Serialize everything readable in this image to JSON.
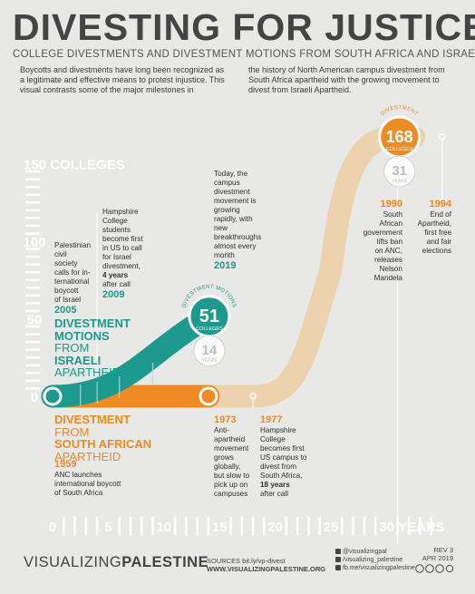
{
  "title": "DIVESTING FOR JUSTICE",
  "subtitle": "COLLEGE DIVESTMENTS AND DIVESTMENT MOTIONS FROM SOUTH AFRICA AND ISRAEL",
  "intro": {
    "left": "Boycotts and divestments have long been recognized as a legitimate and effective means to protest injustice. This visual contrasts some of the major milestones in",
    "right": "the history of North American campus divestment from South Africa apartheid with the growing movement to divest from Israeli Apartheid."
  },
  "colors": {
    "teal": "#1d9a8d",
    "orange": "#ee8b23",
    "beige": "#ecd2ad",
    "bg": "#e8e8e6",
    "text": "#2e2e2e"
  },
  "chart_data": {
    "type": "line",
    "ylabel": "150 COLLEGES",
    "xlabel": "30 YEARS",
    "y_ticks": [
      "0",
      "50",
      "100"
    ],
    "x_ticks": [
      "0",
      "5",
      "10",
      "15",
      "20",
      "25"
    ],
    "ylim": [
      0,
      150
    ],
    "xlim": [
      0,
      35
    ],
    "series": [
      {
        "name": "DIVESTMENT MOTIONS FROM ISRAELI APARTHEID",
        "name_lines": [
          "DIVESTMENT",
          "MOTIONS",
          "FROM",
          "ISRAELI",
          "APARTHEID"
        ],
        "color": "#1d9a8d",
        "x": [
          0,
          14
        ],
        "y": [
          0,
          51
        ],
        "end_value": "51",
        "end_unit": "COLLEGES",
        "end_arc_label": "DIVESTMENT MOTIONS",
        "duration_value": "14",
        "duration_unit": "YEARS"
      },
      {
        "name": "DIVESTMENT FROM SOUTH AFRICAN APARTHEID",
        "name_lines": [
          "DIVESTMENT",
          "FROM",
          "SOUTH AFRICAN",
          "APARTHEID"
        ],
        "color": "#ee8b23",
        "x": [
          0,
          14,
          18,
          25,
          31
        ],
        "y": [
          0,
          0,
          0,
          82,
          168
        ],
        "end_value": "168",
        "end_unit": "COLLEGES",
        "end_arc_label": "DIVESTMENT",
        "duration_value": "31",
        "duration_unit": "YEARS"
      }
    ],
    "annotations": [
      {
        "year": "2005",
        "lines": [
          "Palestinian",
          "civil",
          "society",
          "calls for in-",
          "ternational",
          "boycott",
          "of Israel"
        ]
      },
      {
        "year": "2009",
        "lines": [
          "Hampshire",
          "College",
          "students",
          "become first",
          "in US to call",
          "for Israel",
          "divestment,"
        ],
        "bold": "4 years",
        "after": "after call"
      },
      {
        "year": "2019",
        "lines": [
          "Today, the",
          "campus",
          "divestment",
          "movement is",
          "growing",
          "rapidly, with",
          "new",
          "breakthroughs",
          "almost every",
          "month"
        ]
      },
      {
        "year": "1959",
        "lines": [
          "ANC launches",
          "international boycott",
          "of South Africa"
        ]
      },
      {
        "year": "1973",
        "lines": [
          "Anti-",
          "apartheid",
          "movement",
          "grows",
          "globally,",
          "but slow to",
          "pick up on",
          "campuses"
        ]
      },
      {
        "year": "1977",
        "lines": [
          "Hampshire",
          "College",
          "becomes first",
          "US campus to",
          "divest from",
          "South Africa,"
        ],
        "bold": "18 years",
        "after": "after call"
      },
      {
        "year": "1990",
        "lines": [
          "South",
          "African",
          "government",
          "lifts ban",
          "on ANC,",
          "releases",
          "Nelson",
          "Mandela"
        ]
      },
      {
        "year": "1994",
        "lines": [
          "End of",
          "Apartheid,",
          "first free",
          "and fair",
          "elections"
        ]
      }
    ]
  },
  "footer": {
    "brand_light": "VISUALIZING",
    "brand_bold": "PALESTINE",
    "sources_label": "SOURCES bit.ly/vp-divest",
    "website": "WWW.VISUALIZINGPALESTINE.ORG",
    "social": [
      "@visualizingpal",
      "/visualizing_palestine",
      "fb.me/visualizingpalestine"
    ],
    "rev": "REV 3",
    "date": "APR 2019"
  }
}
